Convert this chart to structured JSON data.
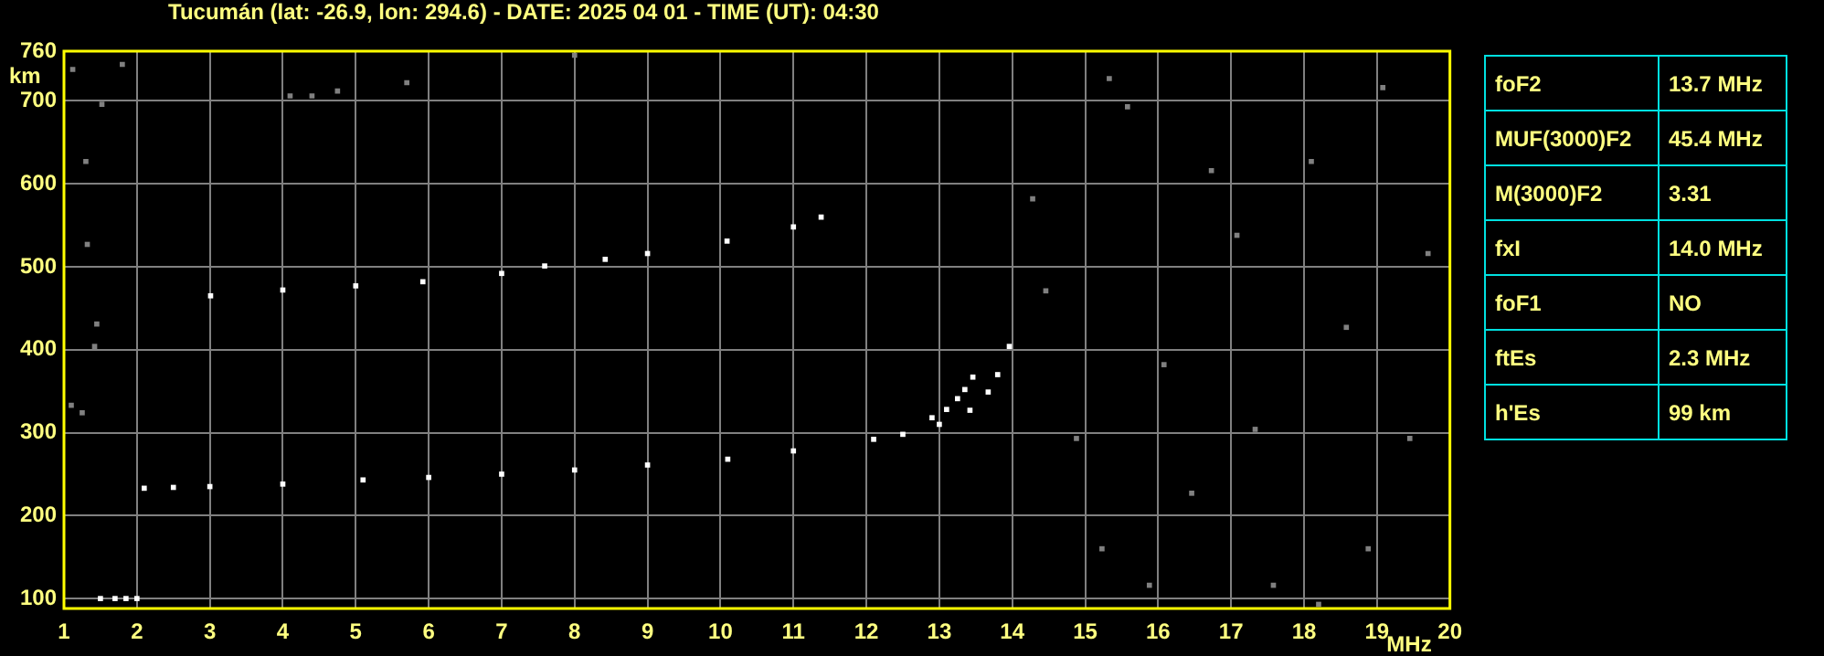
{
  "chart_data": [
    {
      "type": "scatter",
      "title": "Tucumán (lat: -26.9, lon: 294.6) - DATE: 2025 04 01 - TIME (UT): 04:30",
      "xlabel": "MHz",
      "ylabel": "km",
      "xlim": [
        1,
        20
      ],
      "ylim": [
        88,
        760
      ],
      "xticks": [
        1,
        2,
        3,
        4,
        5,
        6,
        7,
        8,
        9,
        10,
        11,
        12,
        13,
        14,
        15,
        16,
        17,
        18,
        19,
        20
      ],
      "yticks": [
        100,
        200,
        300,
        400,
        500,
        600,
        700,
        760
      ],
      "grid": true,
      "legend": false,
      "marker": "square",
      "series": [
        {
          "color": "#808080",
          "x": [
            1.12,
            1.3,
            1.32,
            1.45,
            1.8,
            1.52,
            1.1,
            1.25,
            1.42,
            14.28,
            14.46,
            14.88,
            15.23,
            15.58,
            16.08,
            16.46,
            17.08,
            17.58,
            18.1,
            18.58,
            19.08,
            19.45,
            19.7,
            18.2,
            17.33,
            15.33,
            15.88,
            16.73,
            18.88,
            4.1,
            4.4,
            4.75,
            5.7,
            8.0
          ],
          "values": [
            738,
            627,
            527,
            431,
            744,
            696,
            333,
            324,
            404,
            582,
            471,
            293,
            160,
            693,
            382,
            227,
            538,
            116,
            627,
            427,
            716,
            293,
            516,
            93,
            304,
            727,
            116,
            616,
            160,
            706,
            706,
            712,
            722,
            755
          ]
        },
        {
          "color": "#ffffff",
          "x": [
            2.1,
            2.5,
            3,
            4,
            5.1,
            6,
            7,
            8,
            9,
            10.1,
            11,
            12.1,
            12.5,
            13,
            13.42,
            13.67,
            13.8,
            13.96
          ],
          "values": [
            233,
            234,
            235,
            238,
            243,
            246,
            250,
            255,
            261,
            268,
            278,
            292,
            298,
            310,
            327,
            349,
            370,
            404
          ]
        },
        {
          "color": "#ffffff",
          "x": [
            12.9,
            13.1,
            13.25,
            13.35,
            13.46
          ],
          "values": [
            318,
            328,
            341,
            352,
            367
          ]
        },
        {
          "color": "#ffffff",
          "x": [
            3.01,
            4,
            5,
            5.92,
            7,
            7.59,
            8.42,
            9,
            10.09,
            11,
            11.38
          ],
          "values": [
            465,
            472,
            477,
            482,
            492,
            501,
            509,
            516,
            531,
            548,
            560
          ]
        },
        {
          "color": "#ffffff",
          "x": [
            1.5,
            1.7,
            1.85,
            2.0
          ],
          "values": [
            100,
            100,
            100,
            100
          ]
        }
      ]
    },
    {
      "type": "other",
      "annotations": [
        "foF2",
        "13.7 MHz",
        "MUF(3000)F2",
        "45.4 MHz",
        "M(3000)F2",
        "3.31",
        "fxI",
        "14.0 MHz",
        "foF1",
        "NO",
        "ftEs",
        "2.3 MHz",
        "h'Es",
        "99 km"
      ]
    }
  ]
}
